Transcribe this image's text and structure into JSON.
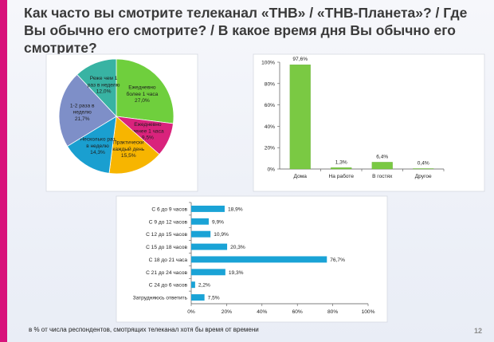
{
  "title": "Как часто вы смотрите телеканал «ТНВ» / «ТНВ-Планета»? / Где Вы обычно его смотрите? / В какое время дня Вы обычно его смотрите?",
  "footnote": "в % от числа респондентов, смотрящих телеканал хотя бы время от времени",
  "page_number": "12",
  "chart_data": [
    {
      "type": "pie",
      "slices": [
        {
          "label": [
            "Ежедневно",
            "более 1 часа",
            "27,0%"
          ],
          "value": 27.0,
          "color": "#6fcf3d"
        },
        {
          "label": [
            "Ежедневно",
            "менее 1 часа",
            "9,5%"
          ],
          "value": 9.5,
          "color": "#d9237c"
        },
        {
          "label": [
            "Практически",
            "каждый день",
            "15,5%"
          ],
          "value": 15.5,
          "color": "#f7b500"
        },
        {
          "label": [
            "Несколько раз",
            "в неделю",
            "14,3%"
          ],
          "value": 14.3,
          "color": "#1a9fd0"
        },
        {
          "label": [
            "1-2 раза в",
            "неделю",
            "21,7%"
          ],
          "value": 21.7,
          "color": "#7e8fc8"
        },
        {
          "label": [
            "Реже чем 1",
            "раз в неделю",
            "12,0%"
          ],
          "value": 12.0,
          "color": "#38b3a3"
        }
      ]
    },
    {
      "type": "bar",
      "categories": [
        "Дома",
        "На работе",
        "В гостях",
        "Другое"
      ],
      "values": [
        97.6,
        1.3,
        6.4,
        0.4
      ],
      "value_labels": [
        "97,6%",
        "1,3%",
        "6,4%",
        "0,4%"
      ],
      "y_ticks": [
        "0%",
        "20%",
        "40%",
        "60%",
        "80%",
        "100%"
      ],
      "ylim": [
        0,
        100
      ],
      "color": "#7ac943"
    },
    {
      "type": "bar",
      "orientation": "horizontal",
      "categories": [
        "С 6 до 9 часов",
        "С 9 до 12 часов",
        "С 12 до 15 часов",
        "С 15 до 18 часов",
        "С 18 до 21 часа",
        "С 21 до 24 часов",
        "С 24 до 6 часов",
        "Затрудняюсь ответить"
      ],
      "values": [
        18.9,
        9.9,
        10.9,
        20.3,
        76.7,
        19.3,
        2.2,
        7.5
      ],
      "value_labels": [
        "18,9%",
        "9,9%",
        "10,9%",
        "20,3%",
        "76,7%",
        "19,3%",
        "2,2%",
        "7,5%"
      ],
      "x_ticks": [
        "0%",
        "20%",
        "40%",
        "60%",
        "80%",
        "100%"
      ],
      "xlim": [
        0,
        100
      ],
      "color": "#1aa3d6"
    }
  ]
}
